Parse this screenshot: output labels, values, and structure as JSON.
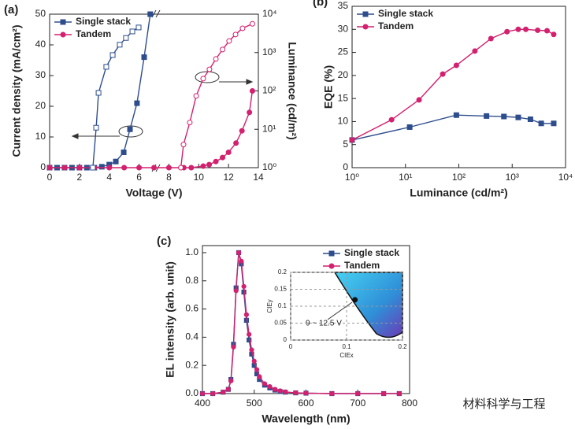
{
  "chart_data": [
    {
      "type": "line",
      "panel_label": "(a)",
      "xlabel": "Voltage (V)",
      "ylabel": "Current density (mA/cm²)",
      "y2label": "Luminance (cd/m²)",
      "xlim": [
        0,
        14
      ],
      "xticks": [
        0,
        2,
        4,
        6,
        8,
        10,
        12,
        14
      ],
      "ylim": [
        0,
        50
      ],
      "yticks": [
        0,
        10,
        20,
        30,
        40,
        50
      ],
      "y2lim": [
        1,
        10000
      ],
      "y2scale": "log",
      "y2ticks": [
        {
          "value": 1,
          "label": "10⁰"
        },
        {
          "value": 10,
          "label": "10¹"
        },
        {
          "value": 100,
          "label": "10²"
        },
        {
          "value": 1000,
          "label": "10³"
        },
        {
          "value": 10000,
          "label": "10⁴"
        }
      ],
      "legend": "upper left",
      "series": [
        {
          "name": "Single stack",
          "color": "#2e4d8c",
          "marker": "square",
          "filled": true,
          "x": [
            0,
            0.5,
            1,
            1.5,
            2,
            2.5,
            3,
            3.5,
            4,
            4.44,
            4.97,
            5.39,
            5.86,
            6.34,
            6.75
          ],
          "values": [
            0,
            0,
            0,
            0,
            0,
            0,
            0,
            0.3,
            1,
            2,
            5,
            12.5,
            21,
            36,
            50
          ]
        },
        {
          "name": "Tandem",
          "color": "#d3206f",
          "marker": "circle",
          "filled": true,
          "x": [
            0,
            1,
            2,
            3,
            4,
            5,
            6,
            7,
            8,
            9,
            9.5,
            10.3,
            10.7,
            11.15,
            11.6,
            12.0,
            12.5,
            12.9,
            13.4,
            13.6
          ],
          "values": [
            0,
            0,
            0,
            0,
            0,
            0,
            0,
            0,
            0,
            0,
            0,
            0.5,
            1,
            2,
            3.3,
            5,
            8,
            12,
            18,
            25
          ]
        },
        {
          "color": "#2e4d8c",
          "marker": "square",
          "filled": false,
          "axis": "y2",
          "x": [
            2.9,
            3.12,
            3.28,
            3.8,
            4.23,
            4.7,
            5.12,
            5.55,
            5.97
          ],
          "values": [
            1,
            11,
            89,
            424,
            860,
            1600,
            2400,
            3550,
            4500
          ]
        },
        {
          "color": "#d3206f",
          "marker": "circle",
          "filled": false,
          "axis": "y2",
          "x": [
            8.8,
            8.98,
            9.4,
            9.83,
            10.3,
            10.72,
            11.15,
            11.6,
            12.04,
            12.47,
            12.94,
            13.6
          ],
          "values": [
            1,
            4,
            15,
            74,
            209,
            365,
            680,
            1200,
            2000,
            2950,
            4270,
            5600
          ]
        }
      ]
    },
    {
      "type": "line",
      "panel_label": "(b)",
      "xlabel": "Luminance (cd/m²)",
      "ylabel": "EQE (%)",
      "xlim": [
        1,
        10000
      ],
      "xscale": "log",
      "xticks": [
        {
          "value": 1,
          "label": "10⁰"
        },
        {
          "value": 10,
          "label": "10¹"
        },
        {
          "value": 100,
          "label": "10²"
        },
        {
          "value": 1000,
          "label": "10³"
        },
        {
          "value": 10000,
          "label": "10⁴"
        }
      ],
      "ylim": [
        0,
        35
      ],
      "yticks": [
        0,
        5,
        10,
        15,
        20,
        25,
        30,
        35
      ],
      "legend": "upper left",
      "series": [
        {
          "name": "Single stack",
          "color": "#2e4d8c",
          "marker": "square",
          "filled": true,
          "x": [
            1,
            12,
            90,
            330,
            700,
            1300,
            2200,
            3500,
            6000
          ],
          "values": [
            6,
            8.8,
            11.4,
            11.2,
            11.1,
            10.9,
            10.5,
            9.6,
            9.6
          ]
        },
        {
          "name": "Tandem",
          "color": "#d3206f",
          "marker": "circle",
          "filled": true,
          "x": [
            1,
            5.5,
            18,
            50,
            90,
            200,
            400,
            800,
            1300,
            1800,
            3000,
            4500,
            6000
          ],
          "values": [
            6,
            10.4,
            14.7,
            20.3,
            22.2,
            25.3,
            28,
            29.5,
            30,
            30,
            29.8,
            29.7,
            28.9
          ]
        }
      ]
    },
    {
      "type": "line",
      "panel_label": "(c)",
      "xlabel": "Wavelength (nm)",
      "ylabel": "EL intensity (arb. unit)",
      "xlim": [
        400,
        800
      ],
      "xticks": [
        400,
        500,
        600,
        700,
        800
      ],
      "ylim": [
        0,
        1.05
      ],
      "yticks": [
        {
          "value": 0,
          "label": "0.0"
        },
        0.2,
        0.4,
        0.6,
        0.8,
        {
          "value": 1,
          "label": "1.0"
        }
      ],
      "legend": "upper right",
      "x": [
        400,
        420,
        440,
        450,
        455,
        460,
        465,
        470,
        475,
        480,
        485,
        490,
        495,
        500,
        505,
        510,
        520,
        530,
        540,
        550,
        560,
        580,
        600,
        650,
        700,
        750,
        780
      ],
      "series": [
        {
          "name": "Single stack",
          "color": "#2e4d8c",
          "marker": "square",
          "filled": true,
          "values": [
            0,
            0,
            0.01,
            0.03,
            0.1,
            0.35,
            0.75,
            1.0,
            0.92,
            0.72,
            0.52,
            0.38,
            0.28,
            0.2,
            0.14,
            0.1,
            0.06,
            0.04,
            0.025,
            0.015,
            0.01,
            0.005,
            0.003,
            0,
            0,
            0,
            0
          ]
        },
        {
          "name": "Tandem",
          "color": "#d3206f",
          "marker": "circle",
          "filled": true,
          "values": [
            0,
            0,
            0.01,
            0.03,
            0.09,
            0.33,
            0.73,
            1.0,
            0.94,
            0.76,
            0.56,
            0.42,
            0.31,
            0.23,
            0.17,
            0.12,
            0.07,
            0.05,
            0.03,
            0.02,
            0.012,
            0.006,
            0.003,
            0,
            0,
            0,
            0
          ]
        }
      ],
      "inset": {
        "type": "scatter",
        "xlabel": "CIEx",
        "ylabel": "CIEy",
        "xlim": [
          0,
          0.2
        ],
        "xticks": [
          0,
          0.1,
          0.2
        ],
        "ylim": [
          0,
          0.2
        ],
        "yticks": [
          0,
          0.05,
          0.1,
          0.15,
          0.2
        ],
        "x": [
          0.115
        ],
        "values": [
          0.119
        ],
        "annotation": "9 ~ 12.5 V"
      }
    }
  ],
  "watermark": "材料科学与工程"
}
